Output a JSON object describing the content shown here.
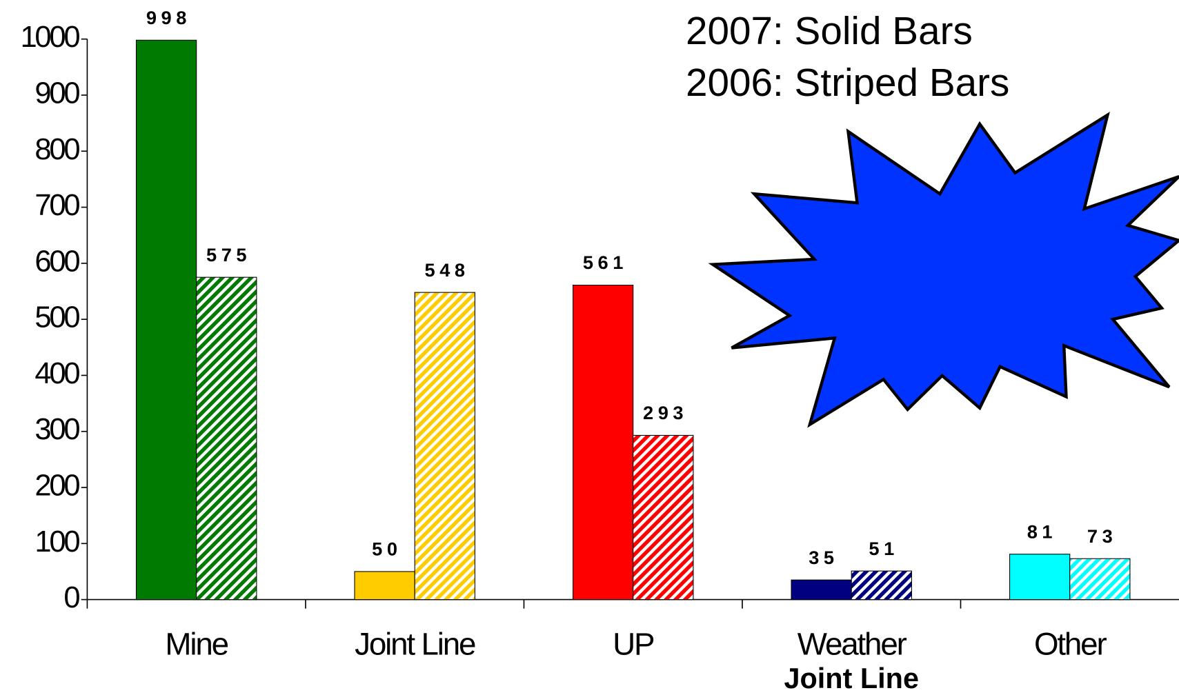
{
  "chart_data": {
    "type": "bar",
    "categories": [
      "Mine",
      "Joint Line",
      "UP",
      "Weather",
      "Other"
    ],
    "colors": [
      "#007a00",
      "#ffcc00",
      "#ff0000",
      "#000080",
      "#00ffff"
    ],
    "series": [
      {
        "pattern": "solid",
        "values": [
          998,
          50,
          561,
          35,
          81
        ]
      },
      {
        "pattern": "striped",
        "values": [
          575,
          548,
          293,
          51,
          73
        ]
      }
    ],
    "ylim": [
      0,
      1000
    ],
    "yticks": [
      0,
      100,
      200,
      300,
      400,
      500,
      600,
      700,
      800,
      900,
      1000
    ],
    "annotations": [
      "2007:  Solid Bars",
      "2006:  Striped Bars"
    ],
    "category_note": "Joint Line"
  }
}
